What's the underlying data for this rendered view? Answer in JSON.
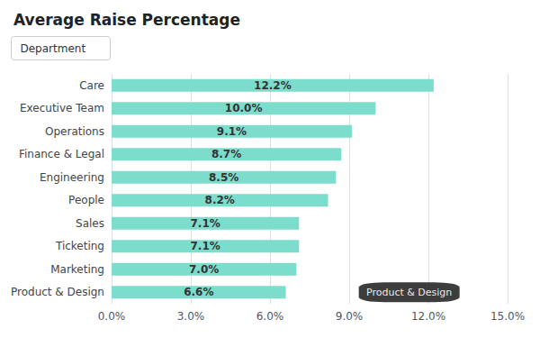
{
  "chart_data": {
    "type": "bar",
    "orientation": "horizontal",
    "title": "Average Raise Percentage",
    "categories": [
      "Care",
      "Executive Team",
      "Operations",
      "Finance & Legal",
      "Engineering",
      "People",
      "Sales",
      "Ticketing",
      "Marketing",
      "Product & Design"
    ],
    "values": [
      12.2,
      10.0,
      9.1,
      8.7,
      8.5,
      8.2,
      7.1,
      7.1,
      7.0,
      6.6
    ],
    "value_labels": [
      "12.2%",
      "10.0%",
      "9.1%",
      "8.7%",
      "8.5%",
      "8.2%",
      "7.1%",
      "7.1%",
      "7.0%",
      "6.6%"
    ],
    "data_labels": true,
    "color": "#7DDDCC",
    "xlim": [
      0,
      15
    ],
    "xticks": [
      {
        "value": 0,
        "label": "0.0%"
      },
      {
        "value": 3,
        "label": "3.0%"
      },
      {
        "value": 6,
        "label": "6.0%"
      },
      {
        "value": 9,
        "label": "9.0%"
      },
      {
        "value": 12,
        "label": "12.0%"
      },
      {
        "value": 15,
        "label": "15.0%"
      }
    ],
    "grid": true,
    "annotations": [
      {
        "text": "Department"
      },
      {
        "text": "Product & Design",
        "x": 9.5,
        "y": "Product & Design"
      }
    ]
  }
}
